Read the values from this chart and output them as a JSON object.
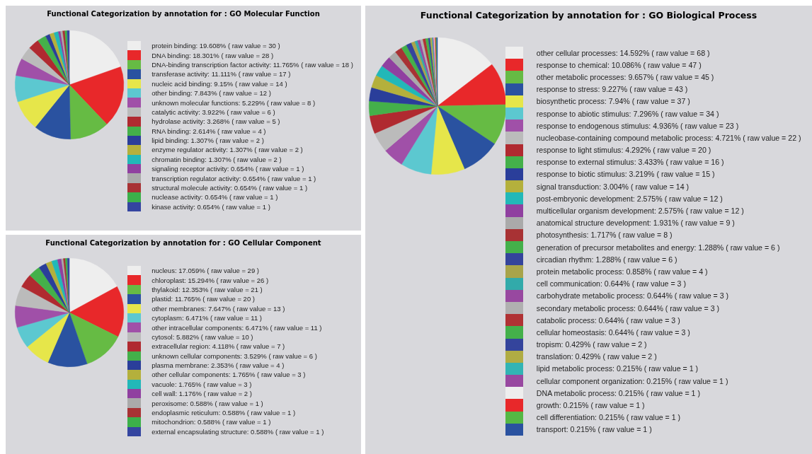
{
  "chart_data": [
    {
      "type": "pie",
      "title": "Functional Categorization by annotation for : GO Molecular Function",
      "legend": "right",
      "categories": [
        "protein binding",
        "DNA binding",
        "DNA-binding transcription factor activity",
        "transferase activity",
        "nucleic acid binding",
        "other binding",
        "unknown molecular functions",
        "catalytic activity",
        "hydrolase activity",
        "RNA binding",
        "lipid binding",
        "enzyme regulator activity",
        "chromatin binding",
        "signaling receptor activity",
        "transcription regulator activity",
        "structural molecule activity",
        "nuclease activity",
        "kinase activity"
      ],
      "values": [
        30,
        28,
        18,
        17,
        14,
        12,
        8,
        6,
        5,
        4,
        2,
        2,
        2,
        1,
        1,
        1,
        1,
        1
      ],
      "value_labels": [
        "19.608% ( raw value = 30 )",
        "18.301% ( raw value = 28 )",
        "11.765% ( raw value = 18 )",
        "11.111% ( raw value = 17 )",
        "9.15% ( raw value = 14 )",
        "7.843% ( raw value = 12 )",
        "5.229% ( raw value = 8 )",
        "3.922% ( raw value = 6 )",
        "3.268% ( raw value = 5 )",
        "2.614% ( raw value = 4 )",
        "1.307% ( raw value = 2 )",
        "1.307% ( raw value = 2 )",
        "1.307% ( raw value = 2 )",
        "0.654% ( raw value = 1 )",
        "0.654% ( raw value = 1 )",
        "0.654% ( raw value = 1 )",
        "0.654% ( raw value = 1 )",
        "0.654% ( raw value = 1 )"
      ],
      "colors": [
        "#eeeeee",
        "#e8282a",
        "#66bb44",
        "#2a52a0",
        "#e6e64a",
        "#5cc8d0",
        "#a050a8",
        "#bbbbbb",
        "#b02a30",
        "#44b04a",
        "#2a3e9a",
        "#b4b03c",
        "#22b8b8",
        "#9040a0",
        "#aaaaaa",
        "#a83234",
        "#3cb04a",
        "#3445a0"
      ]
    },
    {
      "type": "pie",
      "title": "Functional Categorization by annotation for : GO Biological Process",
      "legend": "right",
      "categories": [
        "other cellular processes",
        "response to chemical",
        "other metabolic processes",
        "response to stress",
        "biosynthetic process",
        "response to abiotic stimulus",
        "response to endogenous stimulus",
        "nucleobase-containing compound metabolic process",
        "response to light stimulus",
        "response to external stimulus",
        "response to biotic stimulus",
        "signal transduction",
        "post-embryonic development",
        "multicellular organism development",
        "anatomical structure development",
        "photosynthesis",
        "generation of precursor metabolites and energy",
        "circadian rhythm",
        "protein metabolic process",
        "cell communication",
        "carbohydrate metabolic process",
        "secondary metabolic process",
        "catabolic process",
        "cellular homeostasis",
        "tropism",
        "translation",
        "lipid metabolic process",
        "cellular component organization",
        "DNA metabolic process",
        "growth",
        "cell differentiation",
        "transport"
      ],
      "values": [
        68,
        47,
        45,
        43,
        37,
        34,
        23,
        22,
        20,
        16,
        15,
        14,
        12,
        12,
        9,
        8,
        6,
        6,
        4,
        3,
        3,
        3,
        3,
        3,
        2,
        2,
        1,
        1,
        1,
        1,
        1,
        1
      ],
      "value_labels": [
        "14.592% ( raw value = 68 )",
        "10.086% ( raw value = 47 )",
        "9.657% ( raw value = 45 )",
        "9.227% ( raw value = 43 )",
        "7.94% ( raw value = 37 )",
        "7.296% ( raw value = 34 )",
        "4.936% ( raw value = 23 )",
        "4.721% ( raw value = 22 )",
        "4.292% ( raw value = 20 )",
        "3.433% ( raw value = 16 )",
        "3.219% ( raw value = 15 )",
        "3.004% ( raw value = 14 )",
        "2.575% ( raw value = 12 )",
        "2.575% ( raw value = 12 )",
        "1.931% ( raw value = 9 )",
        "1.717% ( raw value = 8 )",
        "1.288% ( raw value = 6 )",
        "1.288% ( raw value = 6 )",
        "0.858% ( raw value = 4 )",
        "0.644% ( raw value = 3 )",
        "0.644% ( raw value = 3 )",
        "0.644% ( raw value = 3 )",
        "0.644% ( raw value = 3 )",
        "0.644% ( raw value = 3 )",
        "0.429% ( raw value = 2 )",
        "0.429% ( raw value = 2 )",
        "0.215% ( raw value = 1 )",
        "0.215% ( raw value = 1 )",
        "0.215% ( raw value = 1 )",
        "0.215% ( raw value = 1 )",
        "0.215% ( raw value = 1 )",
        "0.215% ( raw value = 1 )"
      ],
      "colors": [
        "#eeeeee",
        "#e8282a",
        "#66bb44",
        "#2a52a0",
        "#e6e64a",
        "#5cc8d0",
        "#a050a8",
        "#bbbbbb",
        "#b02a30",
        "#44b04a",
        "#2a3e9a",
        "#b4b03c",
        "#22b8b8",
        "#9040a0",
        "#aaaaaa",
        "#a83234",
        "#44b04a",
        "#34449c",
        "#a8a44a",
        "#32aaaa",
        "#9848a0",
        "#b0b0b0",
        "#b03234",
        "#44b04a",
        "#34449c",
        "#b0ac44",
        "#32b4b4",
        "#9848a0",
        "#eeeeee",
        "#e8282a",
        "#55b844",
        "#2a52a0"
      ]
    },
    {
      "type": "pie",
      "title": "Functional Categorization by annotation for : GO Cellular Component",
      "legend": "right",
      "categories": [
        "nucleus",
        "chloroplast",
        "thylakoid",
        "plastid",
        "other membranes",
        "cytoplasm",
        "other intracellular components",
        "cytosol",
        "extracellular region",
        "unknown cellular components",
        "plasma membrane",
        "other cellular components",
        "vacuole",
        "cell wall",
        "peroxisome",
        "endoplasmic reticulum",
        "mitochondrion",
        "external encapsulating structure"
      ],
      "values": [
        29,
        26,
        21,
        20,
        13,
        11,
        11,
        10,
        7,
        6,
        4,
        3,
        3,
        2,
        1,
        1,
        1,
        1
      ],
      "value_labels": [
        "17.059% ( raw value = 29 )",
        "15.294% ( raw value = 26 )",
        "12.353% ( raw value = 21 )",
        "11.765% ( raw value = 20 )",
        "7.647% ( raw value = 13 )",
        "6.471% ( raw value = 11 )",
        "6.471% ( raw value = 11 )",
        "5.882% ( raw value = 10 )",
        "4.118% ( raw value = 7 )",
        "3.529% ( raw value = 6 )",
        "2.353% ( raw value = 4 )",
        "1.765% ( raw value = 3 )",
        "1.765% ( raw value = 3 )",
        "1.176% ( raw value = 2 )",
        "0.588% ( raw value = 1 )",
        "0.588% ( raw value = 1 )",
        "0.588% ( raw value = 1 )",
        "0.588% ( raw value = 1 )"
      ],
      "colors": [
        "#eeeeee",
        "#e8282a",
        "#66bb44",
        "#2a52a0",
        "#e6e64a",
        "#5cc8d0",
        "#a050a8",
        "#bbbbbb",
        "#b02a30",
        "#44b04a",
        "#2a3e9a",
        "#b4b03c",
        "#22b8b8",
        "#9040a0",
        "#aaaaaa",
        "#a83234",
        "#3cb04a",
        "#3445a0"
      ]
    }
  ]
}
